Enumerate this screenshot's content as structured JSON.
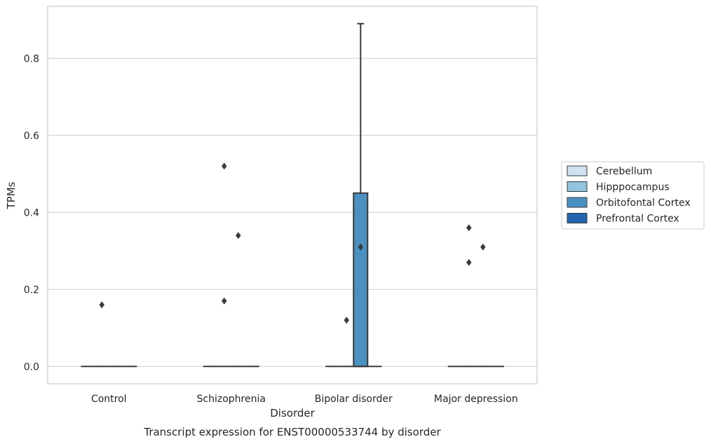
{
  "chart_data": {
    "type": "box",
    "xlabel": "Disorder",
    "ylabel": "TPMs",
    "caption": "Transcript expression for ENST00000533744 by disorder",
    "categories": [
      "Control",
      "Schizophrenia",
      "Bipolar disorder",
      "Major depression"
    ],
    "y_ticks": [
      0.0,
      0.2,
      0.4,
      0.6,
      0.8
    ],
    "y_tick_labels": [
      "0.0",
      "0.2",
      "0.4",
      "0.6",
      "0.8"
    ],
    "ylim": [
      -0.045,
      0.935
    ],
    "grid": "horizontal",
    "legend_position": "right",
    "series": [
      {
        "name": "Cerebellum",
        "color": "#cfe1f2",
        "boxes": [
          {
            "category": "Control",
            "q1": 0,
            "median": 0,
            "q3": 0,
            "whisker_low": 0,
            "whisker_high": 0,
            "outliers": []
          },
          {
            "category": "Schizophrenia",
            "q1": 0,
            "median": 0,
            "q3": 0,
            "whisker_low": 0,
            "whisker_high": 0,
            "outliers": []
          },
          {
            "category": "Bipolar disorder",
            "q1": 0,
            "median": 0,
            "q3": 0,
            "whisker_low": 0,
            "whisker_high": 0,
            "outliers": []
          },
          {
            "category": "Major depression",
            "q1": 0,
            "median": 0,
            "q3": 0,
            "whisker_low": 0,
            "whisker_high": 0,
            "outliers": []
          }
        ]
      },
      {
        "name": "Hipppocampus",
        "color": "#93c4de",
        "boxes": [
          {
            "category": "Control",
            "q1": 0,
            "median": 0,
            "q3": 0,
            "whisker_low": 0,
            "whisker_high": 0,
            "outliers": [
              0.16
            ]
          },
          {
            "category": "Schizophrenia",
            "q1": 0,
            "median": 0,
            "q3": 0,
            "whisker_low": 0,
            "whisker_high": 0,
            "outliers": [
              0.52,
              0.17
            ]
          },
          {
            "category": "Bipolar disorder",
            "q1": 0,
            "median": 0,
            "q3": 0,
            "whisker_low": 0,
            "whisker_high": 0,
            "outliers": [
              0.12
            ]
          },
          {
            "category": "Major depression",
            "q1": 0,
            "median": 0,
            "q3": 0,
            "whisker_low": 0,
            "whisker_high": 0,
            "outliers": [
              0.36,
              0.27
            ]
          }
        ]
      },
      {
        "name": "Orbitofontal Cortex",
        "color": "#4a90c0",
        "boxes": [
          {
            "category": "Control",
            "q1": 0,
            "median": 0,
            "q3": 0,
            "whisker_low": 0,
            "whisker_high": 0,
            "outliers": []
          },
          {
            "category": "Schizophrenia",
            "q1": 0,
            "median": 0,
            "q3": 0,
            "whisker_low": 0,
            "whisker_high": 0,
            "outliers": [
              0.34
            ]
          },
          {
            "category": "Bipolar disorder",
            "q1": 0,
            "median": 0,
            "q3": 0.45,
            "whisker_low": 0,
            "whisker_high": 0.89,
            "outliers": [
              0.31
            ]
          },
          {
            "category": "Major depression",
            "q1": 0,
            "median": 0,
            "q3": 0,
            "whisker_low": 0,
            "whisker_high": 0,
            "outliers": [
              0.31
            ]
          }
        ]
      },
      {
        "name": "Prefrontal Cortex",
        "color": "#2166ac",
        "boxes": [
          {
            "category": "Control",
            "q1": 0,
            "median": 0,
            "q3": 0,
            "whisker_low": 0,
            "whisker_high": 0,
            "outliers": []
          },
          {
            "category": "Schizophrenia",
            "q1": 0,
            "median": 0,
            "q3": 0,
            "whisker_low": 0,
            "whisker_high": 0,
            "outliers": []
          },
          {
            "category": "Bipolar disorder",
            "q1": 0,
            "median": 0,
            "q3": 0,
            "whisker_low": 0,
            "whisker_high": 0,
            "outliers": []
          },
          {
            "category": "Major depression",
            "q1": 0,
            "median": 0,
            "q3": 0,
            "whisker_low": 0,
            "whisker_high": 0,
            "outliers": []
          }
        ]
      }
    ]
  }
}
